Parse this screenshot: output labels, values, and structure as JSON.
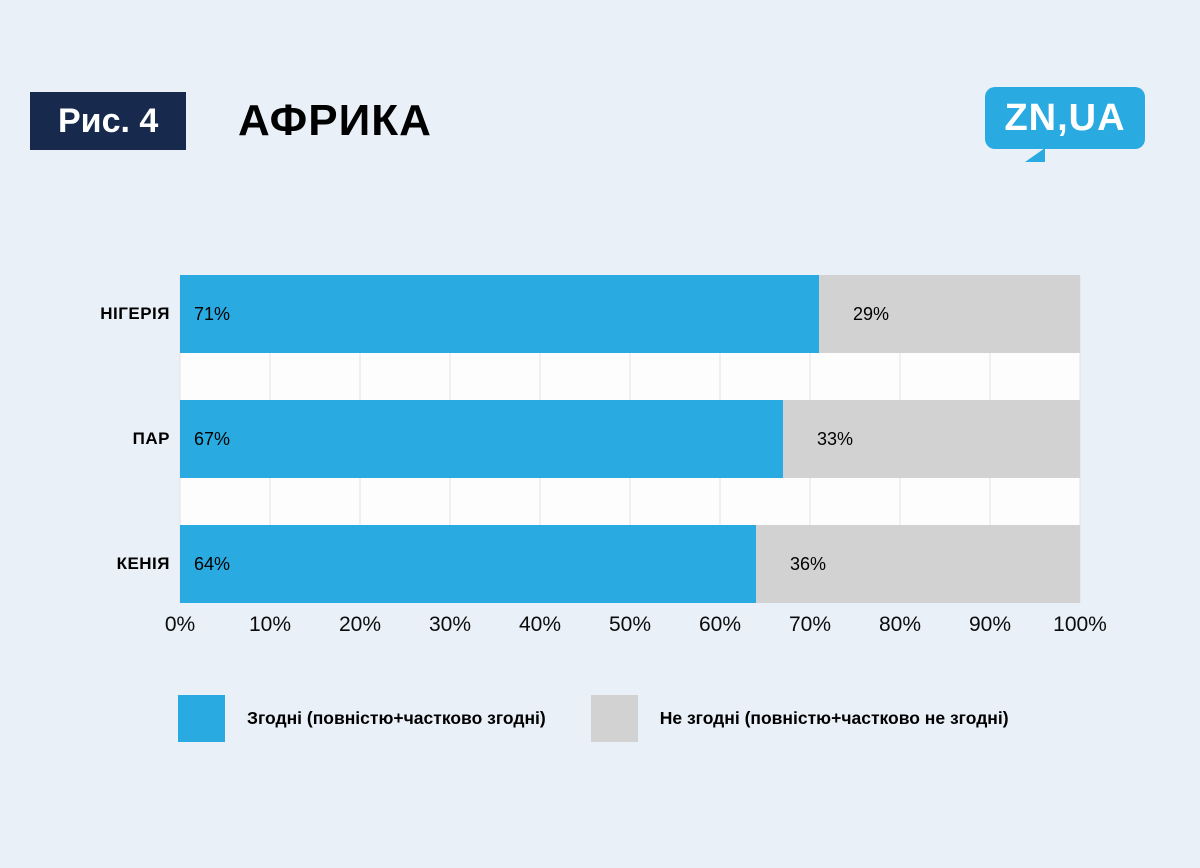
{
  "page": {
    "figure_label": "Рис. 4",
    "title": "АФРИКА",
    "logo_text": "ZN,UA"
  },
  "colors": {
    "background": "#e9f0f8",
    "badge": "#17294d",
    "logo": "#29abe2",
    "agree": "#29abe2",
    "disagree": "#d2d2d2",
    "plot_background": "#fdfdfd",
    "gridline": "#e2e2e2"
  },
  "chart_data": {
    "type": "bar",
    "orientation": "horizontal",
    "stacked": true,
    "title": "АФРИКА",
    "categories": [
      "НІГЕРІЯ",
      "ПАР",
      "КЕНІЯ"
    ],
    "series": [
      {
        "name": "Згодні (повністю+частково згодні)",
        "values": [
          71,
          67,
          64
        ],
        "color": "#29abe2"
      },
      {
        "name": "Не згодні (повністю+частково не згодні)",
        "values": [
          29,
          33,
          36
        ],
        "color": "#d2d2d2"
      }
    ],
    "value_suffix": "%",
    "xlim": [
      0,
      100
    ],
    "x_ticks": [
      "0%",
      "10%",
      "20%",
      "30%",
      "40%",
      "50%",
      "60%",
      "70%",
      "80%",
      "90%",
      "100%"
    ],
    "grid": true,
    "legend_position": "bottom"
  }
}
